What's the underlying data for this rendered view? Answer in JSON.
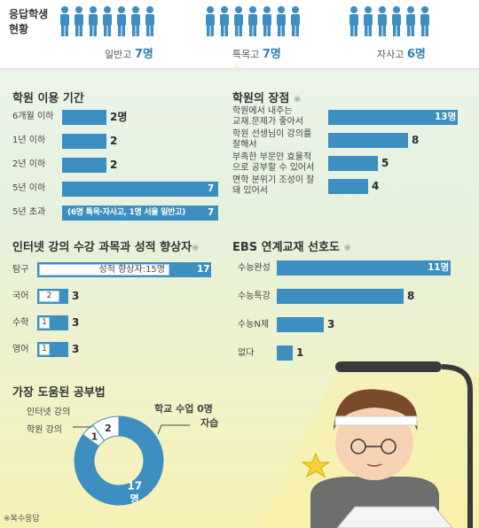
{
  "header": {
    "title_line1": "응답학생",
    "title_line2": "현황",
    "groups": [
      {
        "label": "일반고",
        "count": "7명",
        "people": 7
      },
      {
        "label": "특목고",
        "count": "7명",
        "people": 7
      },
      {
        "label": "자사고",
        "count": "6명",
        "people": 6
      }
    ]
  },
  "colors": {
    "bar": "#3d8fc1",
    "light_bar": "#a9cde3",
    "people": "#3d8fc1"
  },
  "chart_data": [
    {
      "type": "bar",
      "title": "학원 이용 기간",
      "categories": [
        "6개월 이하",
        "1년 이하",
        "2년 이하",
        "5년 이하",
        "5년 초과"
      ],
      "values": [
        2,
        2,
        2,
        7,
        7
      ],
      "value_labels": [
        "2명",
        "2",
        "2",
        "7",
        "7"
      ],
      "annotation": "(6명 특목·자사고, 1명 서울 일반고)",
      "xlim": [
        0,
        7
      ]
    },
    {
      "type": "bar",
      "title": "학원의 장점",
      "title_mark": "※",
      "categories": [
        "학원에서 내주는 교재.문제가 좋아서",
        "학원 선생님이 강의를 잘해서",
        "부족한 부문만 효율적으로 공부할 수 있어서",
        "면학 분위기 조성이 잘 돼 있어서"
      ],
      "category_lines": [
        [
          "학원에서 내주는",
          "교재.문제가 좋아서"
        ],
        [
          "학원 선생님이 강의를",
          "잘해서"
        ],
        [
          "부족한 부문만 효율적",
          "으로 공부할 수 있어서"
        ],
        [
          "면학 분위기 조성이 잘",
          "돼 있어서"
        ]
      ],
      "values": [
        13,
        8,
        5,
        4
      ],
      "value_labels": [
        "13명",
        "8",
        "5",
        "4"
      ],
      "xlim": [
        0,
        13
      ]
    },
    {
      "type": "bar",
      "title": "인터넷 강의 수강 과목과 성적 향상자",
      "title_mark": "※",
      "categories": [
        "탐구",
        "국어",
        "수학",
        "영어"
      ],
      "series": [
        {
          "values": [
            17,
            3,
            3,
            3
          ]
        },
        {
          "name": "성적 향상자",
          "values": [
            15,
            2,
            1,
            1
          ]
        }
      ],
      "value_labels": [
        "17",
        "3",
        "3",
        "3"
      ],
      "improved_labels": [
        "성적 향상자:15명",
        "2",
        "1",
        "1"
      ],
      "xlim": [
        0,
        17
      ]
    },
    {
      "type": "bar",
      "title": "EBS 연계교재 선호도",
      "title_mark": "※",
      "categories": [
        "수능완성",
        "수능특강",
        "수능N제",
        "없다"
      ],
      "values": [
        11,
        8,
        3,
        1
      ],
      "value_labels": [
        "11명",
        "8",
        "3",
        "1"
      ],
      "xlim": [
        0,
        11
      ]
    },
    {
      "type": "pie",
      "title": "가장 도움된 공부법",
      "categories": [
        "인터넷 강의",
        "학원 강의",
        "학교 수업",
        "자습"
      ],
      "values": [
        1,
        2,
        0,
        17
      ],
      "value_labels": [
        "1",
        "2",
        "0명",
        "17명"
      ]
    }
  ],
  "labels": {
    "school_class": "학교 수업",
    "school_class_value": "0명",
    "self_study": "자습",
    "pie_big_value": "17",
    "pie_big_unit": "명"
  },
  "footnote": "※복수응답"
}
